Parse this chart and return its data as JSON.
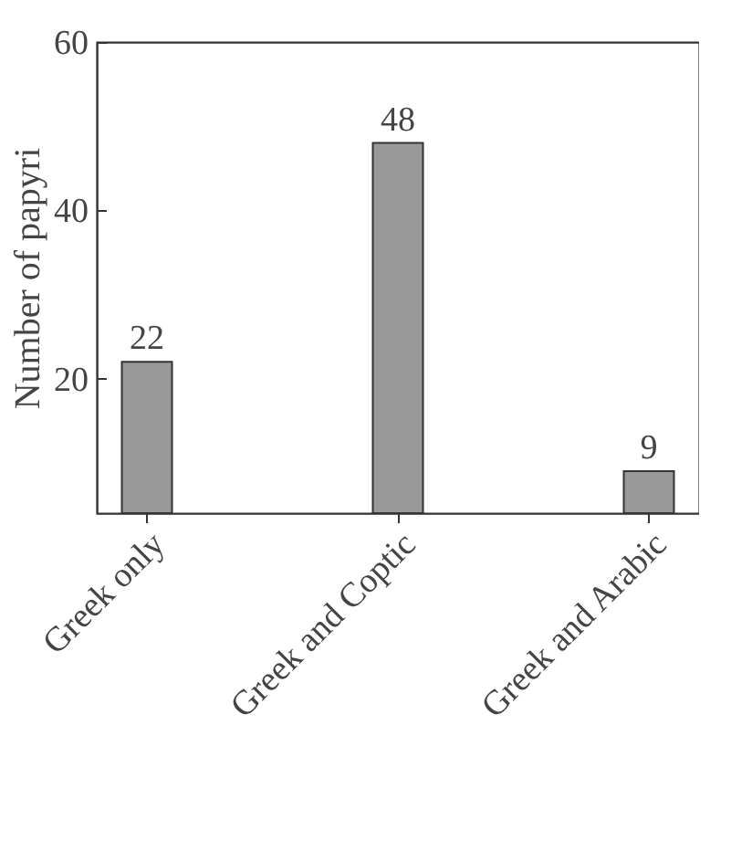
{
  "chart_data": {
    "type": "bar",
    "ylabel": "Number of papyri",
    "categories": [
      "Greek only",
      "Greek and Coptic",
      "Greek and Arabic"
    ],
    "values": [
      22,
      48,
      9
    ],
    "color": "#999999",
    "ylim": [
      4,
      60
    ],
    "yticks": [
      20,
      40,
      60
    ],
    "grid": false,
    "data_labels": true
  }
}
